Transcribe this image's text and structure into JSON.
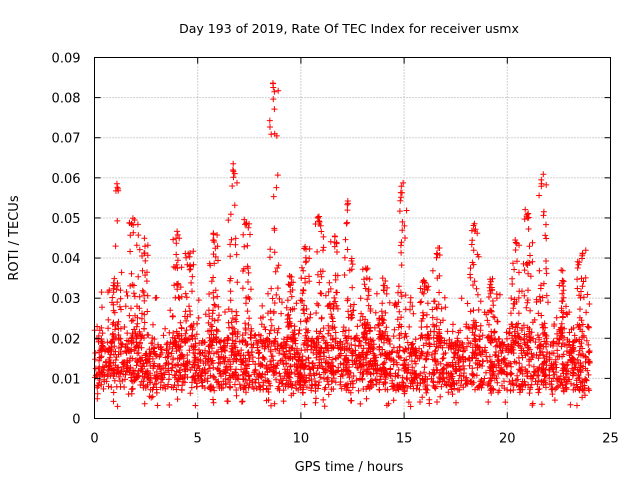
{
  "chart_data": {
    "type": "scatter",
    "title": "Day 193 of 2019, Rate Of TEC Index for receiver usmx",
    "xlabel": "GPS time / hours",
    "ylabel": "ROTI / TECUs",
    "xlim": [
      0,
      25
    ],
    "ylim": [
      0,
      0.09
    ],
    "xticks": [
      0,
      5,
      10,
      15,
      20,
      25
    ],
    "yticks": [
      0,
      0.01,
      0.02,
      0.03,
      0.04,
      0.05,
      0.06,
      0.07,
      0.08,
      0.09
    ],
    "xtick_labels": [
      "0",
      "5",
      "10",
      "15",
      "20",
      "25"
    ],
    "ytick_labels": [
      "0",
      "0.01",
      "0.02",
      "0.03",
      "0.04",
      "0.05",
      "0.06",
      "0.07",
      "0.08",
      "0.09"
    ],
    "grid": true,
    "marker": "+",
    "color": "#ff0000",
    "series": [
      {
        "name": "ROTI",
        "base_range": [
          0.005,
          0.02
        ],
        "x_extent": [
          0,
          24
        ],
        "peaks": [
          {
            "x": 1.1,
            "y": 0.059
          },
          {
            "x": 1.9,
            "y": 0.05
          },
          {
            "x": 2.4,
            "y": 0.045
          },
          {
            "x": 4.0,
            "y": 0.047
          },
          {
            "x": 4.6,
            "y": 0.042
          },
          {
            "x": 5.8,
            "y": 0.047
          },
          {
            "x": 6.7,
            "y": 0.064
          },
          {
            "x": 7.4,
            "y": 0.051
          },
          {
            "x": 8.7,
            "y": 0.085
          },
          {
            "x": 9.5,
            "y": 0.037
          },
          {
            "x": 10.2,
            "y": 0.043
          },
          {
            "x": 10.9,
            "y": 0.051
          },
          {
            "x": 11.6,
            "y": 0.046
          },
          {
            "x": 12.3,
            "y": 0.055
          },
          {
            "x": 13.2,
            "y": 0.038
          },
          {
            "x": 14.0,
            "y": 0.036
          },
          {
            "x": 14.9,
            "y": 0.059
          },
          {
            "x": 16.0,
            "y": 0.036
          },
          {
            "x": 16.6,
            "y": 0.043
          },
          {
            "x": 18.4,
            "y": 0.05
          },
          {
            "x": 19.2,
            "y": 0.035
          },
          {
            "x": 20.4,
            "y": 0.045
          },
          {
            "x": 21.0,
            "y": 0.053
          },
          {
            "x": 21.7,
            "y": 0.061
          },
          {
            "x": 22.7,
            "y": 0.038
          },
          {
            "x": 23.6,
            "y": 0.043
          }
        ]
      }
    ]
  }
}
